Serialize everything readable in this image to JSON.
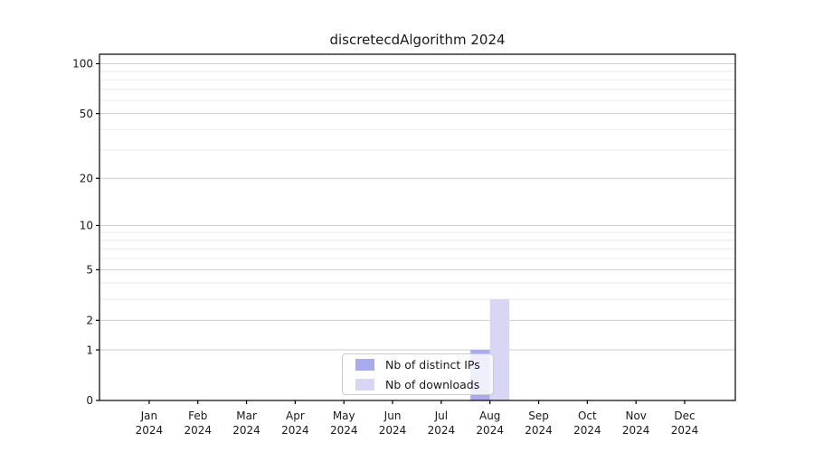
{
  "title": "discretecdAlgorithm 2024",
  "chart_data": {
    "type": "bar",
    "title": "discretecdAlgorithm 2024",
    "categories": [
      "Jan",
      "Feb",
      "Mar",
      "Apr",
      "May",
      "Jun",
      "Jul",
      "Aug",
      "Sep",
      "Oct",
      "Nov",
      "Dec"
    ],
    "category_year": "2024",
    "series": [
      {
        "name": "Nb of distinct IPs",
        "color": "#aaaaee",
        "values": [
          0,
          0,
          0,
          0,
          0,
          0,
          0,
          1,
          0,
          0,
          0,
          0
        ]
      },
      {
        "name": "Nb of downloads",
        "color": "#d7d7f5",
        "values": [
          0,
          0,
          0,
          0,
          0,
          0,
          0,
          3,
          0,
          0,
          0,
          0
        ]
      }
    ],
    "xlabel": "",
    "ylabel": "",
    "yscale": "log1p",
    "ylim": [
      0,
      114
    ],
    "xlim": [
      -1.02,
      12.04
    ],
    "y_major_ticks": [
      0,
      1,
      2,
      5,
      10,
      20,
      50,
      100
    ],
    "y_minor_ticks": [
      3,
      4,
      6,
      7,
      8,
      9,
      30,
      40,
      60,
      70,
      80,
      90
    ],
    "bar_width": 0.4,
    "bar_offsets": [
      -0.2,
      0.2
    ],
    "grid": "both",
    "legend_position": "lower-center-inside",
    "colors": {
      "background": "#ffffff",
      "axis": "#000000",
      "text": "#1a1a1a",
      "grid_major": "#cdcdcd",
      "grid_minor": "#e9e9e9",
      "legend_border": "#cccccc"
    }
  }
}
